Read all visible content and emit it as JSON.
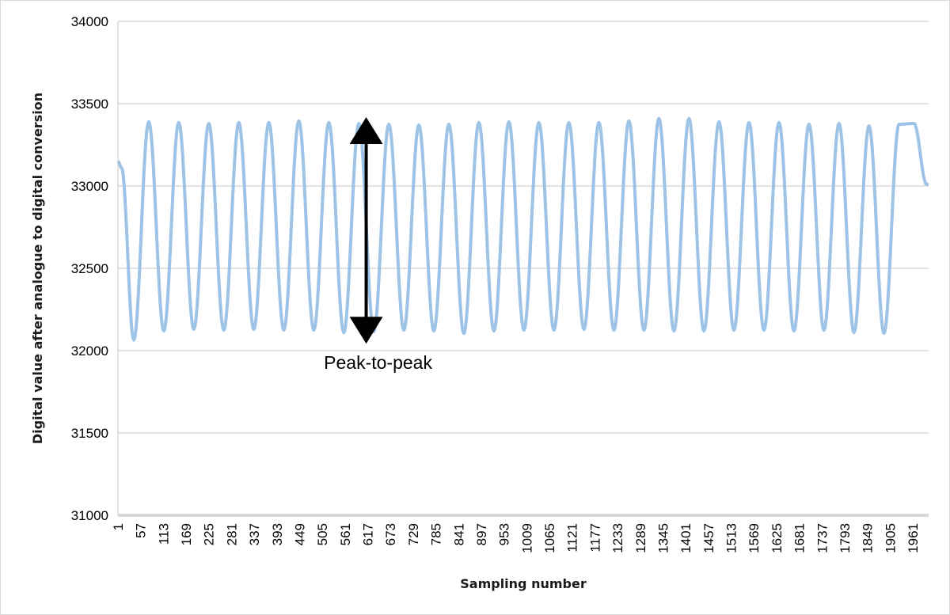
{
  "chart_data": {
    "type": "line",
    "title": "",
    "xlabel": "Sampling number",
    "ylabel": "Digital value after analogue to digital conversion",
    "ylim": [
      31000,
      34000
    ],
    "yticks": [
      31000,
      31500,
      32000,
      32500,
      33000,
      33500,
      34000
    ],
    "xlim": [
      1,
      2000
    ],
    "xticks": [
      1,
      57,
      113,
      169,
      225,
      281,
      337,
      393,
      449,
      505,
      561,
      617,
      673,
      729,
      785,
      841,
      897,
      953,
      1009,
      1065,
      1121,
      1177,
      1233,
      1289,
      1345,
      1401,
      1457,
      1513,
      1569,
      1625,
      1681,
      1737,
      1793,
      1849,
      1905,
      1961
    ],
    "grid": "horizontal",
    "legend": "none",
    "series": [
      {
        "color": "#9dc3e6",
        "period": 74,
        "minimum_at": 40,
        "x": [
          1,
          10,
          40,
          77,
          114,
          151,
          188,
          225,
          262,
          299,
          336,
          373,
          410,
          447,
          484,
          521,
          558,
          595,
          632,
          669,
          706,
          743,
          780,
          817,
          854,
          891,
          928,
          965,
          1002,
          1039,
          1076,
          1113,
          1150,
          1187,
          1224,
          1261,
          1298,
          1335,
          1372,
          1409,
          1446,
          1483,
          1520,
          1557,
          1594,
          1631,
          1668,
          1705,
          1742,
          1779,
          1816,
          1853,
          1890,
          1927,
          1964,
          1995,
          2000
        ],
        "y": [
          33150,
          33110,
          32065,
          33390,
          32120,
          33385,
          32130,
          33380,
          32125,
          33385,
          32130,
          33385,
          32125,
          33395,
          32125,
          33385,
          32110,
          33380,
          32115,
          33375,
          32125,
          33370,
          32120,
          33375,
          32105,
          33385,
          32120,
          33390,
          32125,
          33385,
          32125,
          33385,
          32130,
          33385,
          32125,
          33395,
          32125,
          33410,
          32120,
          33410,
          32120,
          33390,
          32125,
          33385,
          32125,
          33385,
          32120,
          33375,
          32125,
          33380,
          32110,
          33365,
          32105,
          33375,
          33380,
          33010,
          33010
        ]
      }
    ],
    "annotations": [
      {
        "text": "Peak-to-peak",
        "x": 617,
        "y_top": 33370,
        "y_bottom": 32090
      }
    ],
    "colors": {
      "arrow": "#000000",
      "grid": "#d9d9d9",
      "axis": "#d9d9d9"
    }
  }
}
